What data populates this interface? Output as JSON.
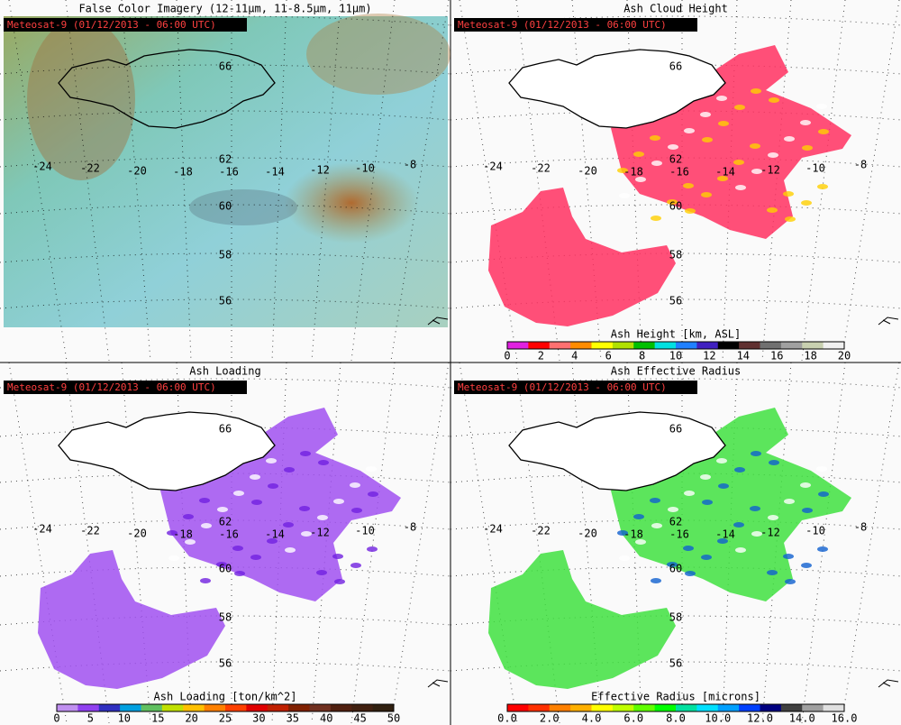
{
  "panels": [
    {
      "title": "False Color Imagery (12-11μm, 11-8.5μm, 11μm)",
      "satellite_label": "Meteosat-9  (01/12/2013 - 06:00 UTC)",
      "longitude_labels": [
        "-24",
        "-22",
        "-20",
        "-18",
        "-16",
        "-14",
        "-12",
        "-10",
        "-8"
      ],
      "latitude_labels": [
        "66",
        "62",
        "60",
        "58",
        "56"
      ]
    },
    {
      "title": "Ash Cloud Height",
      "satellite_label": "Meteosat-9  (01/12/2013 - 06:00 UTC)",
      "longitude_labels": [
        "-24",
        "-22",
        "-20",
        "-18",
        "-16",
        "-14",
        "-12",
        "-10",
        "-8"
      ],
      "latitude_labels": [
        "66",
        "62",
        "60",
        "58",
        "56"
      ],
      "colorbar": {
        "label": "Ash Height [km, ASL]",
        "ticks": [
          "0",
          "2",
          "4",
          "6",
          "8",
          "10",
          "12",
          "14",
          "16",
          "18",
          "20"
        ]
      }
    },
    {
      "title": "Ash Loading",
      "satellite_label": "Meteosat-9  (01/12/2013 - 06:00 UTC)",
      "longitude_labels": [
        "-24",
        "-22",
        "-20",
        "-18",
        "-16",
        "-14",
        "-12",
        "-10",
        "-8"
      ],
      "latitude_labels": [
        "66",
        "62",
        "60",
        "58",
        "56"
      ],
      "colorbar": {
        "label": "Ash Loading [ton/km^2]",
        "ticks": [
          "0",
          "5",
          "10",
          "15",
          "20",
          "25",
          "30",
          "35",
          "40",
          "45",
          "50"
        ]
      }
    },
    {
      "title": "Ash Effective Radius",
      "satellite_label": "Meteosat-9  (01/12/2013 - 06:00 UTC)",
      "longitude_labels": [
        "-24",
        "-22",
        "-20",
        "-18",
        "-16",
        "-14",
        "-12",
        "-10",
        "-8"
      ],
      "latitude_labels": [
        "66",
        "62",
        "60",
        "58",
        "56"
      ],
      "colorbar": {
        "label": "Effective Radius [microns]",
        "ticks": [
          "0.0",
          "2.0",
          "4.0",
          "6.0",
          "8.0",
          "10.0",
          "12.0",
          "14.0",
          "16.0"
        ]
      }
    }
  ]
}
